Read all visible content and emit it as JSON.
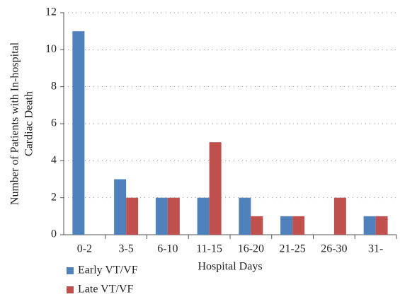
{
  "chart_data": {
    "type": "bar",
    "x_label": "Hospital Days",
    "y_label": [
      "Number of Patients with In-hospital",
      "Cardiac Death"
    ],
    "categories": [
      "0-2",
      "3-5",
      "6-10",
      "11-15",
      "16-20",
      "21-25",
      "26-30",
      "31-"
    ],
    "series": [
      {
        "name": "Early VT/VF",
        "color": "#4f81bd",
        "values": [
          11,
          3,
          2,
          2,
          2,
          1,
          0,
          1
        ]
      },
      {
        "name": "Late VT/VF",
        "color": "#c0504d",
        "values": [
          0,
          2,
          2,
          5,
          1,
          1,
          2,
          1
        ]
      }
    ],
    "ylim": [
      0,
      12
    ],
    "yticks": [
      0,
      2,
      4,
      6,
      8,
      10,
      12
    ],
    "grid": true,
    "legend": "bottom-left"
  }
}
